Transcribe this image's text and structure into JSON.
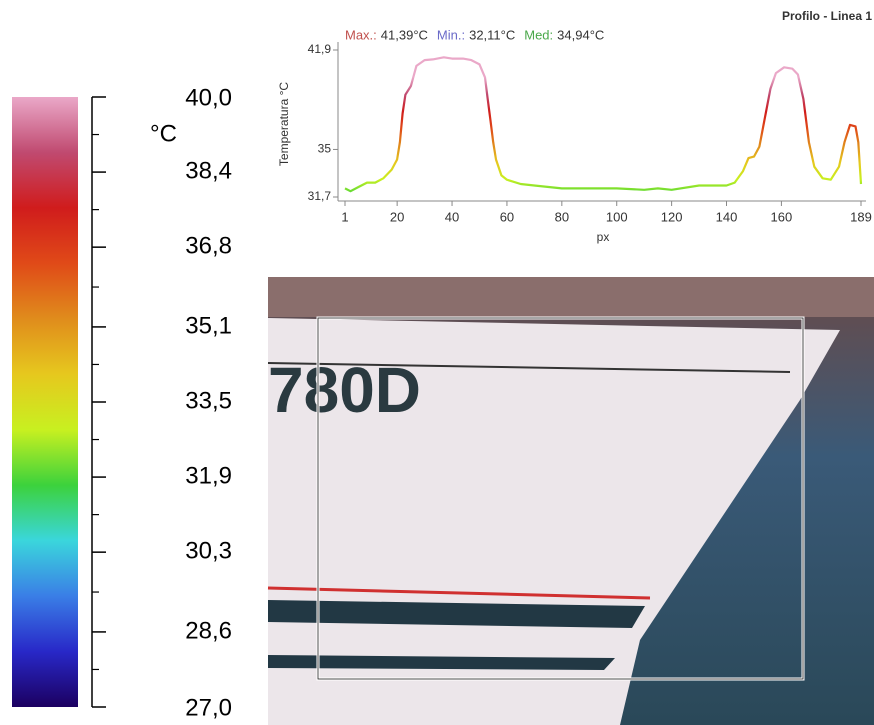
{
  "chart_data": [
    {
      "type": "line",
      "title": "Profilo - Linea 1",
      "stats": [
        {
          "name": "Max.:",
          "value": 41.39,
          "value_label": "41,39°C",
          "color": "#c0504d"
        },
        {
          "name": "Min.:",
          "value": 32.11,
          "value_label": "32,11°C",
          "color": "#6a6ac8"
        },
        {
          "name": "Med:",
          "value": 34.94,
          "value_label": "34,94°C",
          "color": "#4aa84a"
        }
      ],
      "xlabel": "px",
      "ylabel": "Temperatura °C",
      "xlim": [
        1,
        189
      ],
      "xticks": [
        1,
        20,
        40,
        60,
        80,
        100,
        120,
        140,
        160,
        189
      ],
      "ylim": [
        31.7,
        41.9
      ],
      "yticks": [
        {
          "value": 31.7,
          "label": "31,7"
        },
        35,
        {
          "value": 41.9,
          "label": "41,9"
        }
      ],
      "x": [
        1,
        3,
        6,
        9,
        12,
        15,
        18,
        20,
        21,
        22,
        23,
        25,
        27,
        30,
        33,
        37,
        40,
        44,
        47,
        50,
        52,
        53,
        54,
        55,
        56,
        58,
        60,
        65,
        70,
        80,
        90,
        100,
        110,
        115,
        120,
        130,
        140,
        143,
        146,
        148,
        150,
        152,
        154,
        156,
        158,
        161,
        164,
        166,
        168,
        170,
        172,
        175,
        178,
        181,
        183,
        185,
        187,
        188,
        189
      ],
      "values": [
        32.3,
        32.1,
        32.4,
        32.7,
        32.7,
        33.0,
        33.6,
        34.3,
        35.5,
        37.5,
        38.8,
        39.4,
        40.8,
        41.2,
        41.25,
        41.39,
        41.3,
        41.3,
        41.2,
        40.9,
        40.0,
        38.5,
        37.0,
        35.5,
        34.3,
        33.2,
        32.9,
        32.6,
        32.5,
        32.3,
        32.3,
        32.3,
        32.2,
        32.3,
        32.2,
        32.5,
        32.5,
        32.7,
        33.5,
        34.4,
        34.5,
        35.2,
        37.2,
        39.2,
        40.3,
        40.7,
        40.6,
        40.2,
        38.5,
        35.5,
        33.8,
        33.0,
        32.9,
        33.8,
        35.5,
        36.7,
        36.6,
        35.5,
        32.6
      ]
    },
    {
      "type": "colorbar",
      "title": "°C",
      "ylim": [
        27.0,
        40.0
      ],
      "yticks": [
        {
          "value": 27.0,
          "label": "27,0"
        },
        {
          "value": 28.6,
          "label": "28,6"
        },
        {
          "value": 30.3,
          "label": "30,3"
        },
        {
          "value": 31.9,
          "label": "31,9"
        },
        {
          "value": 33.5,
          "label": "33,5"
        },
        {
          "value": 35.1,
          "label": "35,1"
        },
        {
          "value": 36.8,
          "label": "36,8"
        },
        {
          "value": 38.4,
          "label": "38,4"
        },
        {
          "value": 40.0,
          "label": "40,0"
        }
      ],
      "colormap": [
        "#1c0060",
        "#2828c8",
        "#3a7ee6",
        "#3ad6dc",
        "#3cd23c",
        "#c8f020",
        "#e6c81e",
        "#e08c1c",
        "#e04a18",
        "#d01c1c",
        "#c04a70",
        "#eaa8c8"
      ]
    }
  ],
  "photo": {
    "hull_text": "780D"
  }
}
